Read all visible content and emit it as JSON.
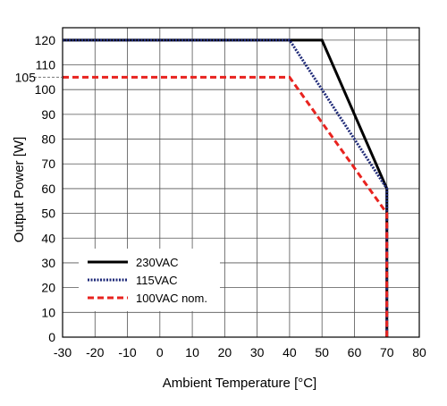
{
  "chart_data": {
    "type": "line",
    "title": "",
    "xlabel": "Ambient Temperature [°C]",
    "ylabel": "Output Power [W]",
    "xlim": [
      -30,
      80
    ],
    "ylim": [
      0,
      125
    ],
    "x_ticks": [
      -30,
      -20,
      -10,
      0,
      10,
      20,
      30,
      40,
      50,
      60,
      70,
      80
    ],
    "y_ticks": [
      0,
      10,
      20,
      30,
      40,
      50,
      60,
      70,
      80,
      90,
      100,
      110,
      120
    ],
    "extra_y_tick": 105,
    "grid": true,
    "legend_position": "bottom-left",
    "series": [
      {
        "name": "230VAC",
        "style": "solid",
        "color": "#000000",
        "points": [
          [
            -30,
            120
          ],
          [
            50,
            120
          ],
          [
            70,
            60
          ],
          [
            70,
            0
          ]
        ]
      },
      {
        "name": "115VAC",
        "style": "dotted",
        "color": "#1f2a78",
        "points": [
          [
            -30,
            120
          ],
          [
            40,
            120
          ],
          [
            70,
            60
          ],
          [
            70,
            0
          ]
        ]
      },
      {
        "name": "100VAC nom.",
        "style": "dashed",
        "color": "#e8231f",
        "points": [
          [
            -30,
            105
          ],
          [
            40,
            105
          ],
          [
            70,
            50
          ],
          [
            70,
            0
          ]
        ]
      }
    ]
  }
}
